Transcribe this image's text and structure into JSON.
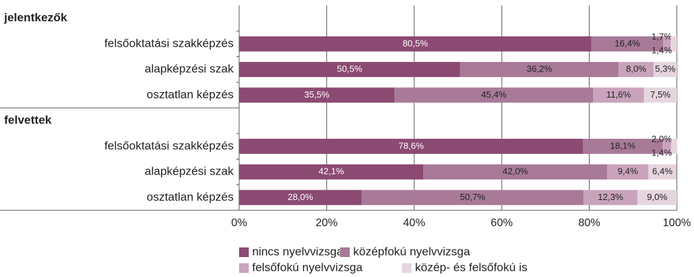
{
  "chart_data": {
    "type": "stacked-bar-horizontal",
    "groups": [
      "jelentkezők",
      "felvettek"
    ],
    "categories": [
      "felsőoktatási szakképzés",
      "alapképzési szak",
      "osztatlan képzés",
      "felsőoktatási szakképzés",
      "alapképzési szak",
      "osztatlan képzés"
    ],
    "series": [
      {
        "name": "nincs nyelvvizsga",
        "color": "#8b4a72",
        "values": [
          80.5,
          50.5,
          35.5,
          78.6,
          42.1,
          28.0
        ],
        "value_labels": [
          "80,5%",
          "50,5%",
          "35,5%",
          "78,6%",
          "42,1%",
          "28,0%"
        ]
      },
      {
        "name": "középfokú nyelvvizsga",
        "color": "#a87a98",
        "values": [
          16.4,
          36.2,
          45.4,
          18.1,
          42.0,
          50.7
        ],
        "value_labels": [
          "16,4%",
          "36,2%",
          "45,4%",
          "18,1%",
          "42,0%",
          "50,7%"
        ]
      },
      {
        "name": "felsőfokú nyelvvizsga",
        "color": "#c9a3bb",
        "values": [
          1.7,
          8.0,
          11.6,
          2.0,
          9.4,
          12.3
        ],
        "value_labels": [
          "1,7%",
          "8,0%",
          "11,6%",
          "2,0%",
          "9,4%",
          "12,3%"
        ]
      },
      {
        "name": "közép- és felsőfokú is",
        "color": "#e6d5df",
        "values": [
          1.4,
          5.3,
          7.5,
          1.4,
          6.4,
          9.0
        ],
        "value_labels": [
          "1,4%",
          "5,3%",
          "7,5%",
          "1,4%",
          "6,4%",
          "9,0%"
        ]
      }
    ],
    "xlim": [
      0,
      100
    ],
    "xticks": [
      {
        "value": 0,
        "label": "0%"
      },
      {
        "value": 20,
        "label": "20%"
      },
      {
        "value": 40,
        "label": "40%"
      },
      {
        "value": 60,
        "label": "60%"
      },
      {
        "value": 80,
        "label": "80%"
      },
      {
        "value": 100,
        "label": "100%"
      }
    ],
    "grid": true
  }
}
